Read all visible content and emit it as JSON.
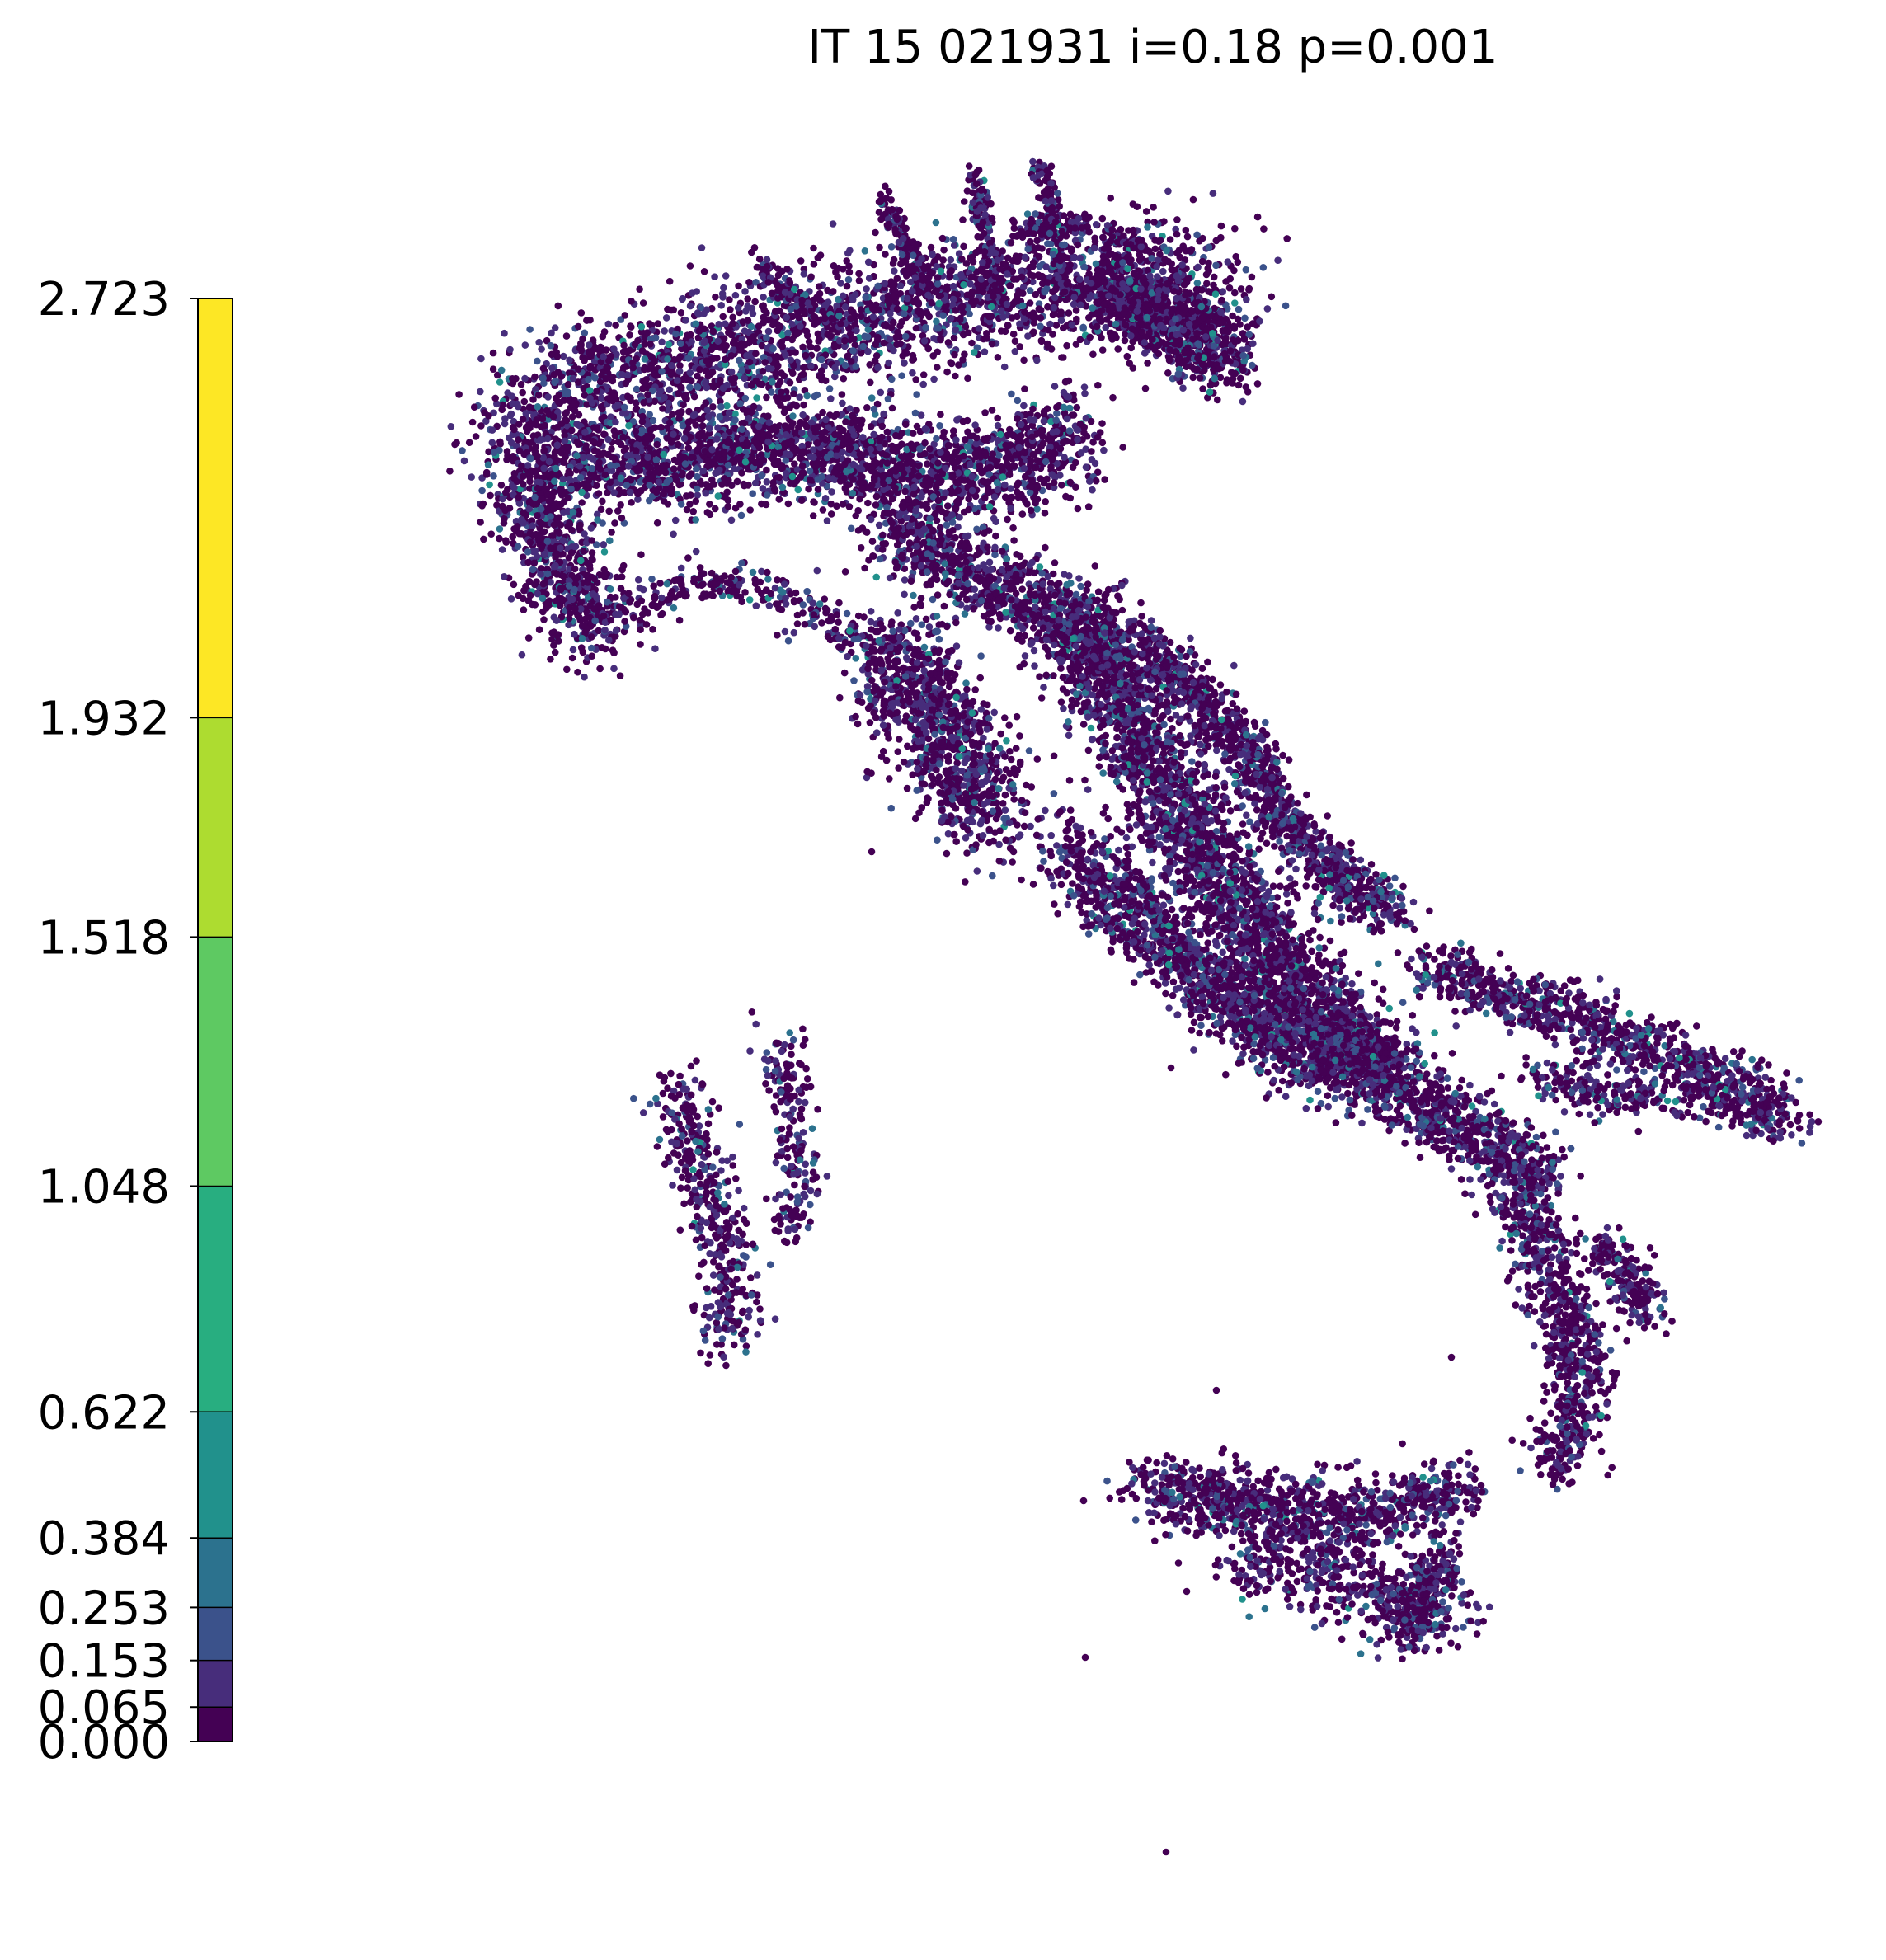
{
  "title": "IT 15 021931 i=0.18 p=0.001",
  "colorbar": {
    "boundaries": [
      0.0,
      0.065,
      0.153,
      0.253,
      0.384,
      0.622,
      1.048,
      1.518,
      1.932,
      2.723
    ],
    "tick_labels": [
      "0.000",
      "0.065",
      "0.153",
      "0.253",
      "0.384",
      "0.622",
      "1.048",
      "1.518",
      "1.932",
      "2.723"
    ],
    "colors": [
      "#440154",
      "#472d7b",
      "#3b528b",
      "#2c728e",
      "#21918c",
      "#28ae80",
      "#5ec962",
      "#addc30",
      "#fde725"
    ],
    "colormap": "viridis"
  },
  "chart_data": {
    "type": "scatter",
    "subject": "station points over Italy",
    "title": "IT 15 021931 i=0.18 p=0.001",
    "axes": "off",
    "grid": false,
    "legend": "colorbar-left",
    "dominant_class_index": 0,
    "secondary_class_indices": [
      1,
      2,
      3,
      4
    ]
  }
}
